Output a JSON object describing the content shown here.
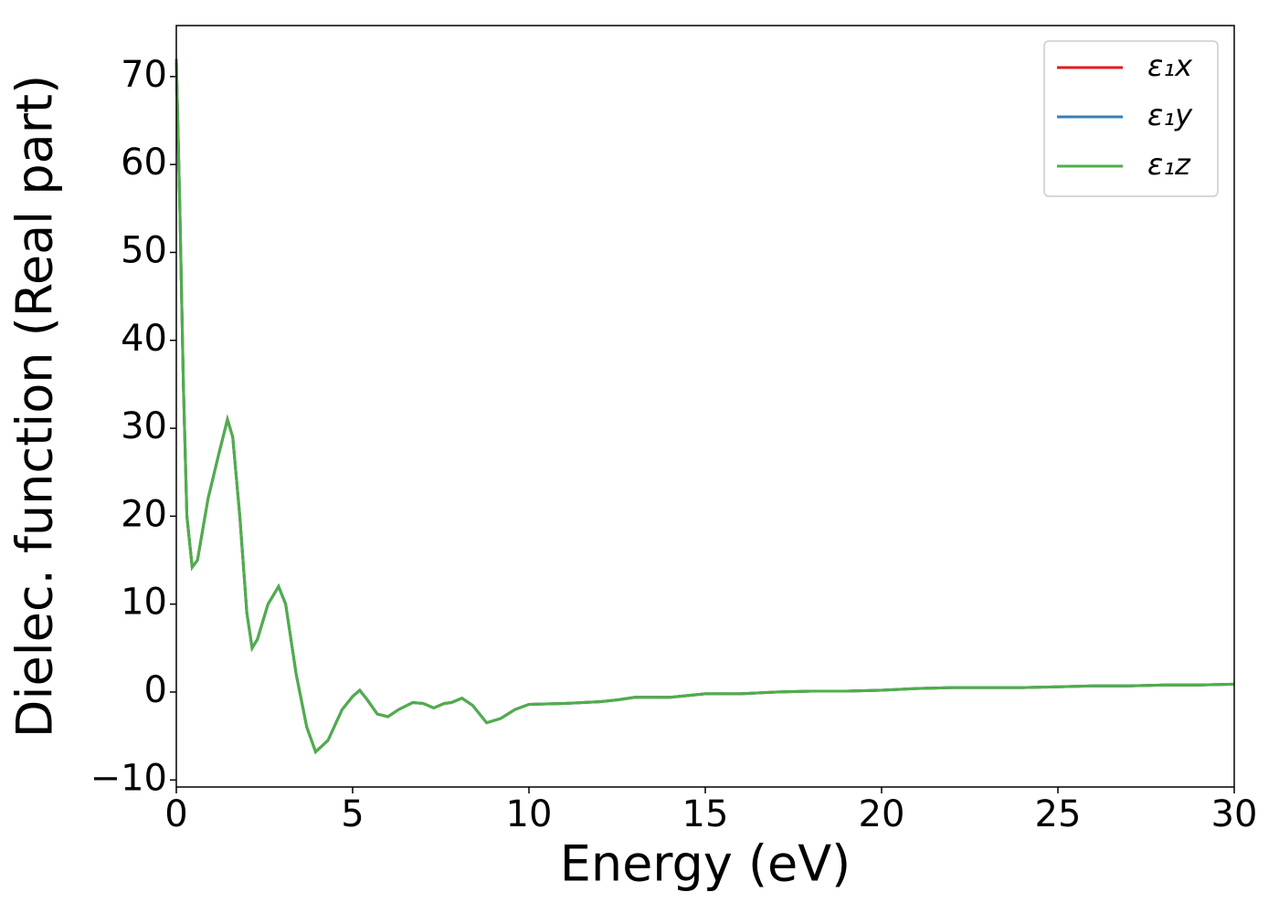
{
  "chart_data": {
    "type": "line",
    "xlabel": "Energy (eV)",
    "ylabel": "Dielec. function (Real part)",
    "x": [
      0,
      0.1,
      0.2,
      0.3,
      0.45,
      0.6,
      0.9,
      1.2,
      1.45,
      1.6,
      1.8,
      2.0,
      2.15,
      2.3,
      2.6,
      2.9,
      3.1,
      3.4,
      3.7,
      3.95,
      4.3,
      4.7,
      5.0,
      5.2,
      5.4,
      5.7,
      6.0,
      6.3,
      6.7,
      7.0,
      7.3,
      7.6,
      7.8,
      8.1,
      8.4,
      8.8,
      9.2,
      9.6,
      10,
      11,
      12,
      12.5,
      13,
      14,
      15,
      16,
      17,
      18,
      19,
      20,
      21,
      22,
      23,
      24,
      25,
      26,
      27,
      28,
      29,
      30
    ],
    "series": [
      {
        "name": "ε₁x",
        "color": "#e41a1c",
        "values": [
          72,
          55,
          35,
          20,
          14.2,
          15,
          22,
          27,
          31,
          29,
          20,
          9,
          5,
          6,
          10,
          12,
          10,
          2,
          -4,
          -6.8,
          -5.5,
          -2,
          -0.5,
          0.2,
          -0.8,
          -2.5,
          -2.8,
          -2,
          -1.2,
          -1.3,
          -1.8,
          -1.3,
          -1.2,
          -0.7,
          -1.5,
          -3.5,
          -3,
          -2,
          -1.4,
          -1.3,
          -1.1,
          -0.9,
          -0.6,
          -0.6,
          -0.2,
          -0.2,
          0,
          0.1,
          0.1,
          0.2,
          0.4,
          0.5,
          0.5,
          0.5,
          0.6,
          0.7,
          0.7,
          0.8,
          0.8,
          0.9
        ]
      },
      {
        "name": "ε₁y",
        "color": "#377eb8",
        "values": [
          72,
          55,
          35,
          20,
          14.2,
          15,
          22,
          27,
          31,
          29,
          20,
          9,
          5,
          6,
          10,
          12,
          10,
          2,
          -4,
          -6.8,
          -5.5,
          -2,
          -0.5,
          0.2,
          -0.8,
          -2.5,
          -2.8,
          -2,
          -1.2,
          -1.3,
          -1.8,
          -1.3,
          -1.2,
          -0.7,
          -1.5,
          -3.5,
          -3,
          -2,
          -1.4,
          -1.3,
          -1.1,
          -0.9,
          -0.6,
          -0.6,
          -0.2,
          -0.2,
          0,
          0.1,
          0.1,
          0.2,
          0.4,
          0.5,
          0.5,
          0.5,
          0.6,
          0.7,
          0.7,
          0.8,
          0.8,
          0.9
        ]
      },
      {
        "name": "ε₁z",
        "color": "#4daf4a",
        "values": [
          72,
          55,
          35,
          20,
          14.2,
          15,
          22,
          27,
          31,
          29,
          20,
          9,
          5,
          6,
          10,
          12,
          10,
          2,
          -4,
          -6.8,
          -5.5,
          -2,
          -0.5,
          0.2,
          -0.8,
          -2.5,
          -2.8,
          -2,
          -1.2,
          -1.3,
          -1.8,
          -1.3,
          -1.2,
          -0.7,
          -1.5,
          -3.5,
          -3,
          -2,
          -1.4,
          -1.3,
          -1.1,
          -0.9,
          -0.6,
          -0.6,
          -0.2,
          -0.2,
          0,
          0.1,
          0.1,
          0.2,
          0.4,
          0.5,
          0.5,
          0.5,
          0.6,
          0.7,
          0.7,
          0.8,
          0.8,
          0.9
        ]
      }
    ],
    "xlim": [
      0,
      30
    ],
    "xticks": [
      0,
      5,
      10,
      15,
      20,
      25,
      30
    ],
    "ylim": [
      -10.8,
      75.8
    ],
    "yticks": [
      {
        "value": -10,
        "label": "−10"
      },
      0,
      10,
      20,
      30,
      40,
      50,
      60,
      70
    ],
    "legend": "upper right"
  }
}
